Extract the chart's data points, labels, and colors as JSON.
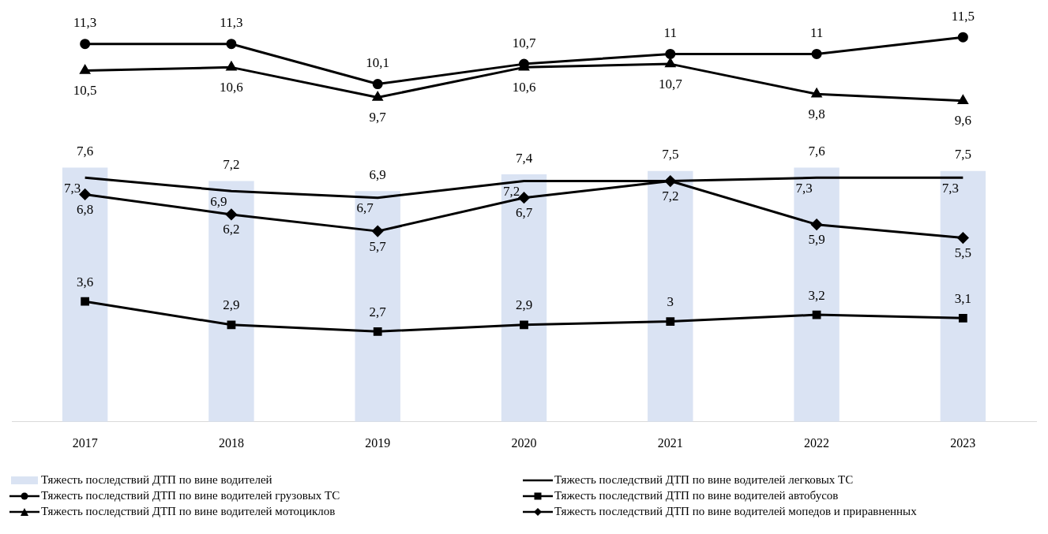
{
  "chart_data": {
    "type": "bar",
    "categories": [
      "2017",
      "2018",
      "2019",
      "2020",
      "2021",
      "2022",
      "2023"
    ],
    "series": [
      {
        "name": "Тяжесть последствий ДТП по вине водителей",
        "color": "#dae3f3",
        "values": [
          7.6,
          7.2,
          6.9,
          7.4,
          7.5,
          7.6,
          7.5
        ],
        "value_labels": [
          "7,6",
          "7,2",
          "6,9",
          "7,4",
          "7,5",
          "7,6",
          "7,5"
        ]
      },
      {
        "name": "Тяжесть последствий ДТП по вине водителей легковых ТС",
        "type": "line",
        "color": "#000000",
        "marker": "none",
        "values": [
          7.3,
          6.9,
          6.7,
          7.2,
          7.2,
          7.3,
          7.3
        ],
        "value_labels": [
          "7,3",
          "6,9",
          "6,7",
          "7,2",
          null,
          "7,3",
          "7,3"
        ]
      },
      {
        "name": "Тяжесть последствий ДТП по вине водителей грузовых ТС",
        "type": "line",
        "color": "#000000",
        "marker": "circle",
        "values": [
          11.3,
          11.3,
          10.1,
          10.7,
          11,
          11,
          11.5
        ],
        "value_labels": [
          "11,3",
          "11,3",
          "10,1",
          "10,7",
          "11",
          "11",
          "11,5"
        ]
      },
      {
        "name": "Тяжесть последствий ДТП по вине водителей автобусов",
        "type": "line",
        "color": "#000000",
        "marker": "square",
        "values": [
          3.6,
          2.9,
          2.7,
          2.9,
          3,
          3.2,
          3.1
        ],
        "value_labels": [
          "3,6",
          "2,9",
          "2,7",
          "2,9",
          "3",
          "3,2",
          "3,1"
        ]
      },
      {
        "name": "Тяжесть последствий ДТП по вине водителей мотоциклов",
        "type": "line",
        "color": "#000000",
        "marker": "triangle",
        "values": [
          10.5,
          10.6,
          9.7,
          10.6,
          10.7,
          9.8,
          9.6
        ],
        "value_labels": [
          "10,5",
          "10,6",
          "9,7",
          "10,6",
          "10,7",
          "9,8",
          "9,6"
        ]
      },
      {
        "name": "Тяжесть последствий ДТП по вине водителей мопедов и приравненных",
        "type": "line",
        "color": "#000000",
        "marker": "diamond",
        "values": [
          6.8,
          6.2,
          5.7,
          6.7,
          7.2,
          5.9,
          5.5
        ],
        "value_labels": [
          "6,8",
          "6,2",
          "5,7",
          "6,7",
          "7,2",
          "5,9",
          "5,5"
        ]
      }
    ],
    "tick_labels": "x",
    "grid": false,
    "legend": "bottom"
  }
}
